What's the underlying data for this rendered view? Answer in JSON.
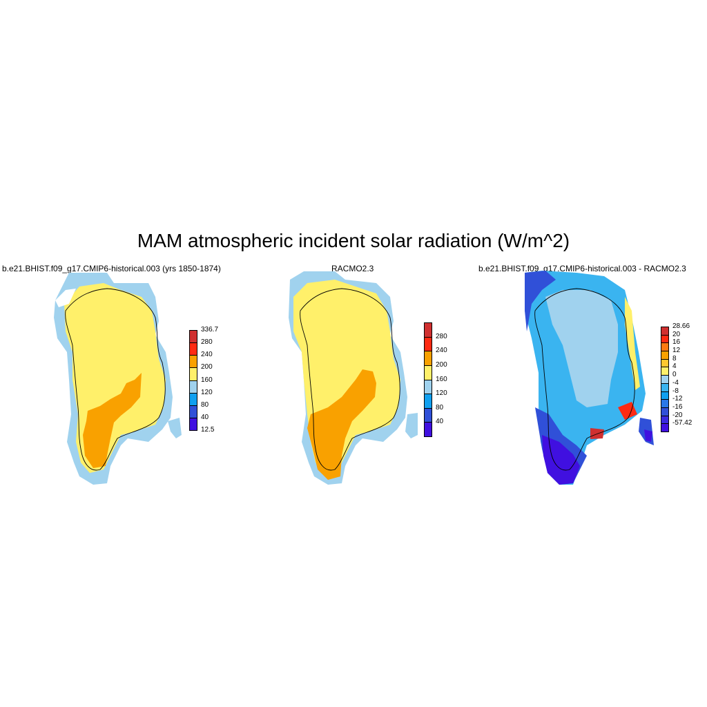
{
  "title": "MAM atmospheric incident solar radiation (W/m^2)",
  "panels": [
    {
      "title": "b.e21.BHIST.f09_g17.CMIP6-historical.003 (yrs 1850-1874)"
    },
    {
      "title": "RACMO2.3"
    },
    {
      "title": "b.e21.BHIST.f09_g17.CMIP6-historical.003 - RACMO2.3"
    }
  ],
  "colorbars": {
    "abs": {
      "colors": [
        "#4010e0",
        "#3050d8",
        "#10a0f0",
        "#a0d2ee",
        "#fff06a",
        "#f9a100",
        "#ff2a12",
        "#d03030"
      ],
      "labels": [
        "12.5",
        "40",
        "80",
        "120",
        "160",
        "200",
        "240",
        "280",
        "336.7"
      ]
    },
    "racmo": {
      "colors": [
        "#4010e0",
        "#3050d8",
        "#10a0f0",
        "#a0d2ee",
        "#fff06a",
        "#f9a100",
        "#ff2a12",
        "#d03030"
      ],
      "labels": [
        "40",
        "80",
        "120",
        "160",
        "200",
        "240",
        "280"
      ]
    },
    "diff": {
      "colors": [
        "#4010e0",
        "#3a2ae0",
        "#3050d8",
        "#2a78e8",
        "#10a0f0",
        "#3ab4f0",
        "#a0d2ee",
        "#fff06a",
        "#ffc830",
        "#f9a100",
        "#ff7a10",
        "#ff2a12",
        "#d03030"
      ],
      "labels": [
        "-57.42",
        "-20",
        "-16",
        "-12",
        "-8",
        "-4",
        "0",
        "4",
        "8",
        "12",
        "16",
        "20",
        "28.66"
      ]
    }
  }
}
